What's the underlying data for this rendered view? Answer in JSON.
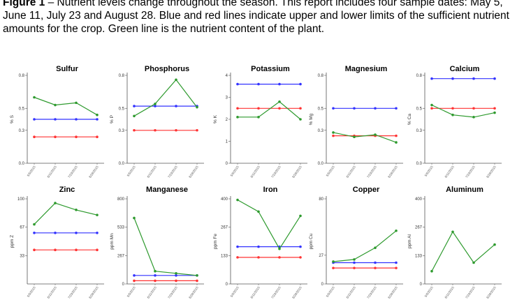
{
  "caption": {
    "label": "Figure 1",
    "text": " – Nutrient levels change throughout the season. This report includes four sample dates: May 5, June 11, July 23 and August 28.  Blue and red lines indicate upper and lower limits of the sufficient nutrient amounts for the crop. Green line is the nutrient content of the plant."
  },
  "colors": {
    "upper": "#3333ff",
    "lower": "#ff3333",
    "plant": "#2e9a2e",
    "axis": "#555555"
  },
  "chart_data": [
    {
      "type": "line",
      "title": "Sulfur",
      "ylabel": "% S",
      "ylim": [
        0,
        0.8
      ],
      "yticks": [
        "0.8",
        "0.5",
        "0.3",
        "0.0"
      ],
      "ytickvals": [
        0.8,
        0.5,
        0.3,
        0.0
      ],
      "x": [
        "5/5/2015",
        "6/11/2015",
        "7/23/2015",
        "8/28/2015"
      ],
      "series": [
        {
          "key": "upper",
          "values": [
            0.4,
            0.4,
            0.4,
            0.4
          ]
        },
        {
          "key": "lower",
          "values": [
            0.24,
            0.24,
            0.24,
            0.24
          ]
        },
        {
          "key": "plant",
          "values": [
            0.6,
            0.53,
            0.55,
            0.44
          ]
        }
      ]
    },
    {
      "type": "line",
      "title": "Phosphorus",
      "ylabel": "% P",
      "ylim": [
        0,
        0.8
      ],
      "yticks": [
        "0.8",
        "0.5",
        "0.3",
        "0.0"
      ],
      "ytickvals": [
        0.8,
        0.5,
        0.3,
        0.0
      ],
      "x": [
        "5/5/2015",
        "6/11/2015",
        "7/23/2015",
        "8/28/2015"
      ],
      "series": [
        {
          "key": "upper",
          "values": [
            0.52,
            0.52,
            0.52,
            0.52
          ]
        },
        {
          "key": "lower",
          "values": [
            0.3,
            0.3,
            0.3,
            0.3
          ]
        },
        {
          "key": "plant",
          "values": [
            0.43,
            0.54,
            0.76,
            0.51
          ]
        }
      ]
    },
    {
      "type": "line",
      "title": "Potassium",
      "ylabel": "% K",
      "ylim": [
        0,
        4
      ],
      "yticks": [
        "4",
        "3",
        "2",
        "1",
        "0"
      ],
      "ytickvals": [
        4,
        3,
        2,
        1,
        0
      ],
      "x": [
        "5/5/2015",
        "6/11/2015",
        "7/23/2015",
        "8/28/2015"
      ],
      "series": [
        {
          "key": "upper",
          "values": [
            3.6,
            3.6,
            3.6,
            3.6
          ]
        },
        {
          "key": "lower",
          "values": [
            2.5,
            2.5,
            2.5,
            2.5
          ]
        },
        {
          "key": "plant",
          "values": [
            2.1,
            2.1,
            2.8,
            2.0
          ]
        }
      ]
    },
    {
      "type": "line",
      "title": "Magnesium",
      "ylabel": "% Mg",
      "ylim": [
        0,
        0.8
      ],
      "yticks": [
        "0.8",
        "0.5",
        "0.3",
        "0.0"
      ],
      "ytickvals": [
        0.8,
        0.5,
        0.3,
        0.0
      ],
      "x": [
        "5/5/2015",
        "6/11/2015",
        "7/23/2015",
        "8/28/2015"
      ],
      "series": [
        {
          "key": "upper",
          "values": [
            0.5,
            0.5,
            0.5,
            0.5
          ]
        },
        {
          "key": "lower",
          "values": [
            0.25,
            0.25,
            0.25,
            0.25
          ]
        },
        {
          "key": "plant",
          "values": [
            0.28,
            0.24,
            0.26,
            0.19
          ]
        }
      ]
    },
    {
      "type": "line",
      "title": "Calcium",
      "ylabel": "% Ca",
      "ylim": [
        0,
        0.8
      ],
      "yticks": [
        "0.8",
        "0.5",
        "0.3",
        "0.0"
      ],
      "ytickvals": [
        0.8,
        0.5,
        0.3,
        0.0
      ],
      "x": [
        "5/5/2015",
        "6/11/2015",
        "7/23/2015",
        "8/28/2015"
      ],
      "series": [
        {
          "key": "upper",
          "values": [
            0.77,
            0.77,
            0.77,
            0.77
          ]
        },
        {
          "key": "lower",
          "values": [
            0.5,
            0.5,
            0.5,
            0.5
          ]
        },
        {
          "key": "plant",
          "values": [
            0.53,
            0.44,
            0.42,
            0.46
          ]
        }
      ]
    },
    {
      "type": "line",
      "title": "Zinc",
      "ylabel": "ppm Z",
      "ylim": [
        0,
        100
      ],
      "yticks": [
        "100",
        "67",
        "33"
      ],
      "ytickvals": [
        100,
        67,
        33
      ],
      "x": [
        "5/5/2015",
        "6/11/2015",
        "7/23/2015",
        "8/28/2015"
      ],
      "series": [
        {
          "key": "upper",
          "values": [
            60,
            60,
            60,
            60
          ]
        },
        {
          "key": "lower",
          "values": [
            40,
            40,
            40,
            40
          ]
        },
        {
          "key": "plant",
          "values": [
            70,
            95,
            87,
            81
          ]
        }
      ]
    },
    {
      "type": "line",
      "title": "Manganese",
      "ylabel": "ppm Mn",
      "ylim": [
        0,
        800
      ],
      "yticks": [
        "800",
        "533",
        "267",
        "0"
      ],
      "ytickvals": [
        800,
        533,
        267,
        0
      ],
      "x": [
        "5/5/2015",
        "6/11/2015",
        "7/23/2015",
        "8/28/2015"
      ],
      "series": [
        {
          "key": "upper",
          "values": [
            80,
            80,
            80,
            80
          ]
        },
        {
          "key": "lower",
          "values": [
            30,
            30,
            30,
            30
          ]
        },
        {
          "key": "plant",
          "values": [
            620,
            120,
            100,
            80
          ]
        }
      ]
    },
    {
      "type": "line",
      "title": "Iron",
      "ylabel": "ppm Fe",
      "ylim": [
        0,
        400
      ],
      "yticks": [
        "400",
        "267",
        "133",
        "0"
      ],
      "ytickvals": [
        400,
        267,
        133,
        0
      ],
      "x": [
        "5/5/2015",
        "6/11/2015",
        "7/23/2015",
        "8/28/2015"
      ],
      "series": [
        {
          "key": "upper",
          "values": [
            175,
            175,
            175,
            175
          ]
        },
        {
          "key": "lower",
          "values": [
            125,
            125,
            125,
            125
          ]
        },
        {
          "key": "plant",
          "values": [
            395,
            340,
            165,
            320
          ]
        }
      ]
    },
    {
      "type": "line",
      "title": "Copper",
      "ylabel": "ppm Cu",
      "ylim": [
        0,
        80
      ],
      "yticks": [
        "80",
        "27",
        "0"
      ],
      "ytickvals": [
        80,
        27,
        0
      ],
      "x": [
        "5/5/2015",
        "6/11/2015",
        "7/23/2015",
        "8/28/2015"
      ],
      "series": [
        {
          "key": "upper",
          "values": [
            20,
            20,
            20,
            20
          ]
        },
        {
          "key": "lower",
          "values": [
            15,
            15,
            15,
            15
          ]
        },
        {
          "key": "plant",
          "values": [
            21,
            23,
            34,
            50
          ]
        }
      ]
    },
    {
      "type": "line",
      "title": "Aluminum",
      "ylabel": "ppm Al",
      "ylim": [
        0,
        400
      ],
      "yticks": [
        "400",
        "267",
        "133",
        "0"
      ],
      "ytickvals": [
        400,
        267,
        133,
        0
      ],
      "x": [
        "5/5/2015",
        "6/11/2015",
        "7/23/2015",
        "8/28/2015"
      ],
      "series": [
        {
          "key": "plant",
          "values": [
            60,
            245,
            100,
            185
          ]
        }
      ]
    }
  ]
}
